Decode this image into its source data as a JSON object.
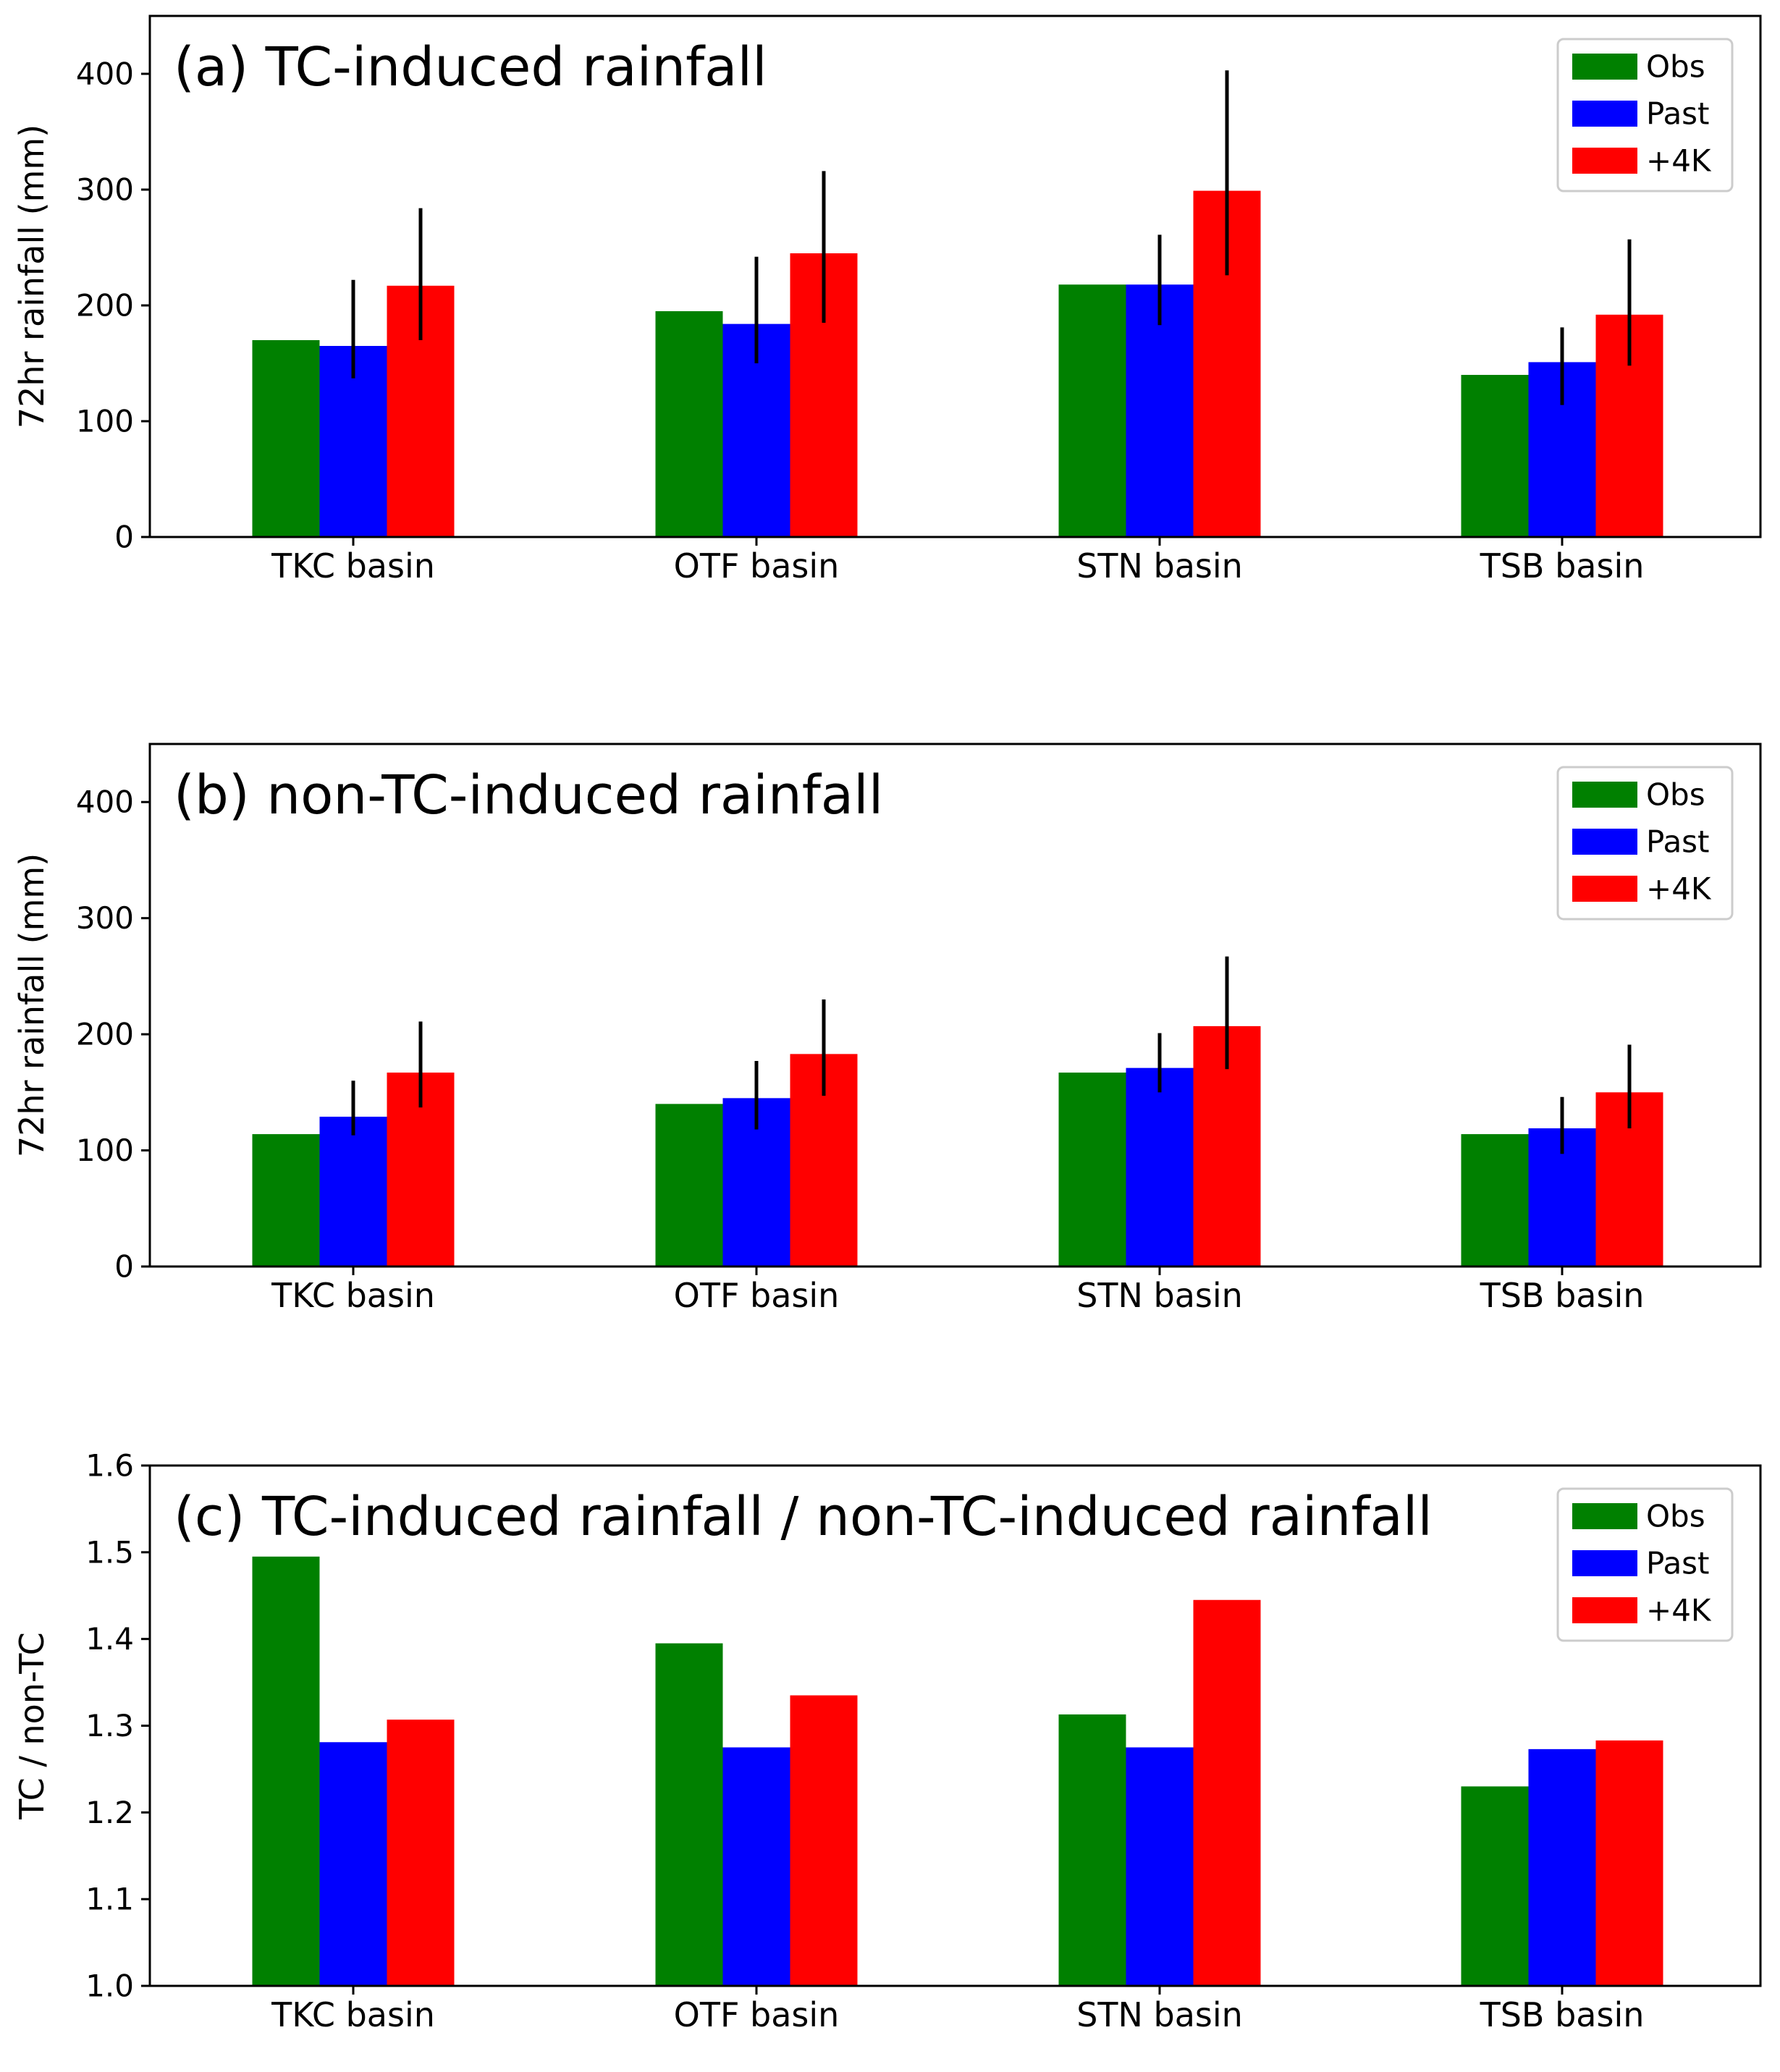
{
  "figure": {
    "series_names": [
      "Obs",
      "Past",
      "+4K"
    ],
    "series_colors": [
      "#008000",
      "#0000ff",
      "#ff0000"
    ],
    "categories": [
      "TKC basin",
      "OTF basin",
      "STN basin",
      "TSB basin"
    ]
  },
  "chart_data": [
    {
      "type": "bar",
      "title": "(a) TC-induced rainfall",
      "xlabel": "",
      "ylabel": "72hr rainfall (mm)",
      "ylim": [
        0,
        450
      ],
      "yticks": [
        "0",
        "100",
        "200",
        "300",
        "400"
      ],
      "categories": [
        "TKC basin",
        "OTF basin",
        "STN basin",
        "TSB basin"
      ],
      "legend_position": "top-right",
      "series": [
        {
          "name": "Obs",
          "color": "#008000",
          "values": [
            170,
            195,
            218,
            140
          ],
          "error_low": null,
          "error_high": null
        },
        {
          "name": "Past",
          "color": "#0000ff",
          "values": [
            165,
            184,
            218,
            151
          ],
          "error_low": [
            137,
            150,
            183,
            114
          ],
          "error_high": [
            222,
            242,
            261,
            181
          ]
        },
        {
          "name": "+4K",
          "color": "#ff0000",
          "values": [
            217,
            245,
            299,
            192
          ],
          "error_low": [
            170,
            185,
            226,
            148
          ],
          "error_high": [
            284,
            316,
            403,
            257
          ]
        }
      ]
    },
    {
      "type": "bar",
      "title": "(b) non-TC-induced rainfall",
      "xlabel": "",
      "ylabel": "72hr rainfall (mm)",
      "ylim": [
        0,
        450
      ],
      "yticks": [
        "0",
        "100",
        "200",
        "300",
        "400"
      ],
      "categories": [
        "TKC basin",
        "OTF basin",
        "STN basin",
        "TSB basin"
      ],
      "legend_position": "top-right",
      "series": [
        {
          "name": "Obs",
          "color": "#008000",
          "values": [
            114,
            140,
            167,
            114
          ],
          "error_low": null,
          "error_high": null
        },
        {
          "name": "Past",
          "color": "#0000ff",
          "values": [
            129,
            145,
            171,
            119
          ],
          "error_low": [
            113,
            118,
            150,
            97
          ],
          "error_high": [
            160,
            177,
            201,
            146
          ]
        },
        {
          "name": "+4K",
          "color": "#ff0000",
          "values": [
            167,
            183,
            207,
            150
          ],
          "error_low": [
            137,
            147,
            170,
            119
          ],
          "error_high": [
            211,
            230,
            267,
            191
          ]
        }
      ]
    },
    {
      "type": "bar",
      "title": "(c) TC-induced rainfall / non-TC-induced rainfall",
      "xlabel": "",
      "ylabel": "TC / non-TC",
      "ylim": [
        1.0,
        1.6
      ],
      "yticks": [
        "1.0",
        "1.1",
        "1.2",
        "1.3",
        "1.4",
        "1.5",
        "1.6"
      ],
      "categories": [
        "TKC basin",
        "OTF basin",
        "STN basin",
        "TSB basin"
      ],
      "legend_position": "top-right",
      "series": [
        {
          "name": "Obs",
          "color": "#008000",
          "values": [
            1.495,
            1.395,
            1.313,
            1.23
          ],
          "error_low": null,
          "error_high": null
        },
        {
          "name": "Past",
          "color": "#0000ff",
          "values": [
            1.281,
            1.275,
            1.275,
            1.273
          ],
          "error_low": null,
          "error_high": null
        },
        {
          "name": "+4K",
          "color": "#ff0000",
          "values": [
            1.307,
            1.335,
            1.445,
            1.283
          ],
          "error_low": null,
          "error_high": null
        }
      ]
    }
  ]
}
